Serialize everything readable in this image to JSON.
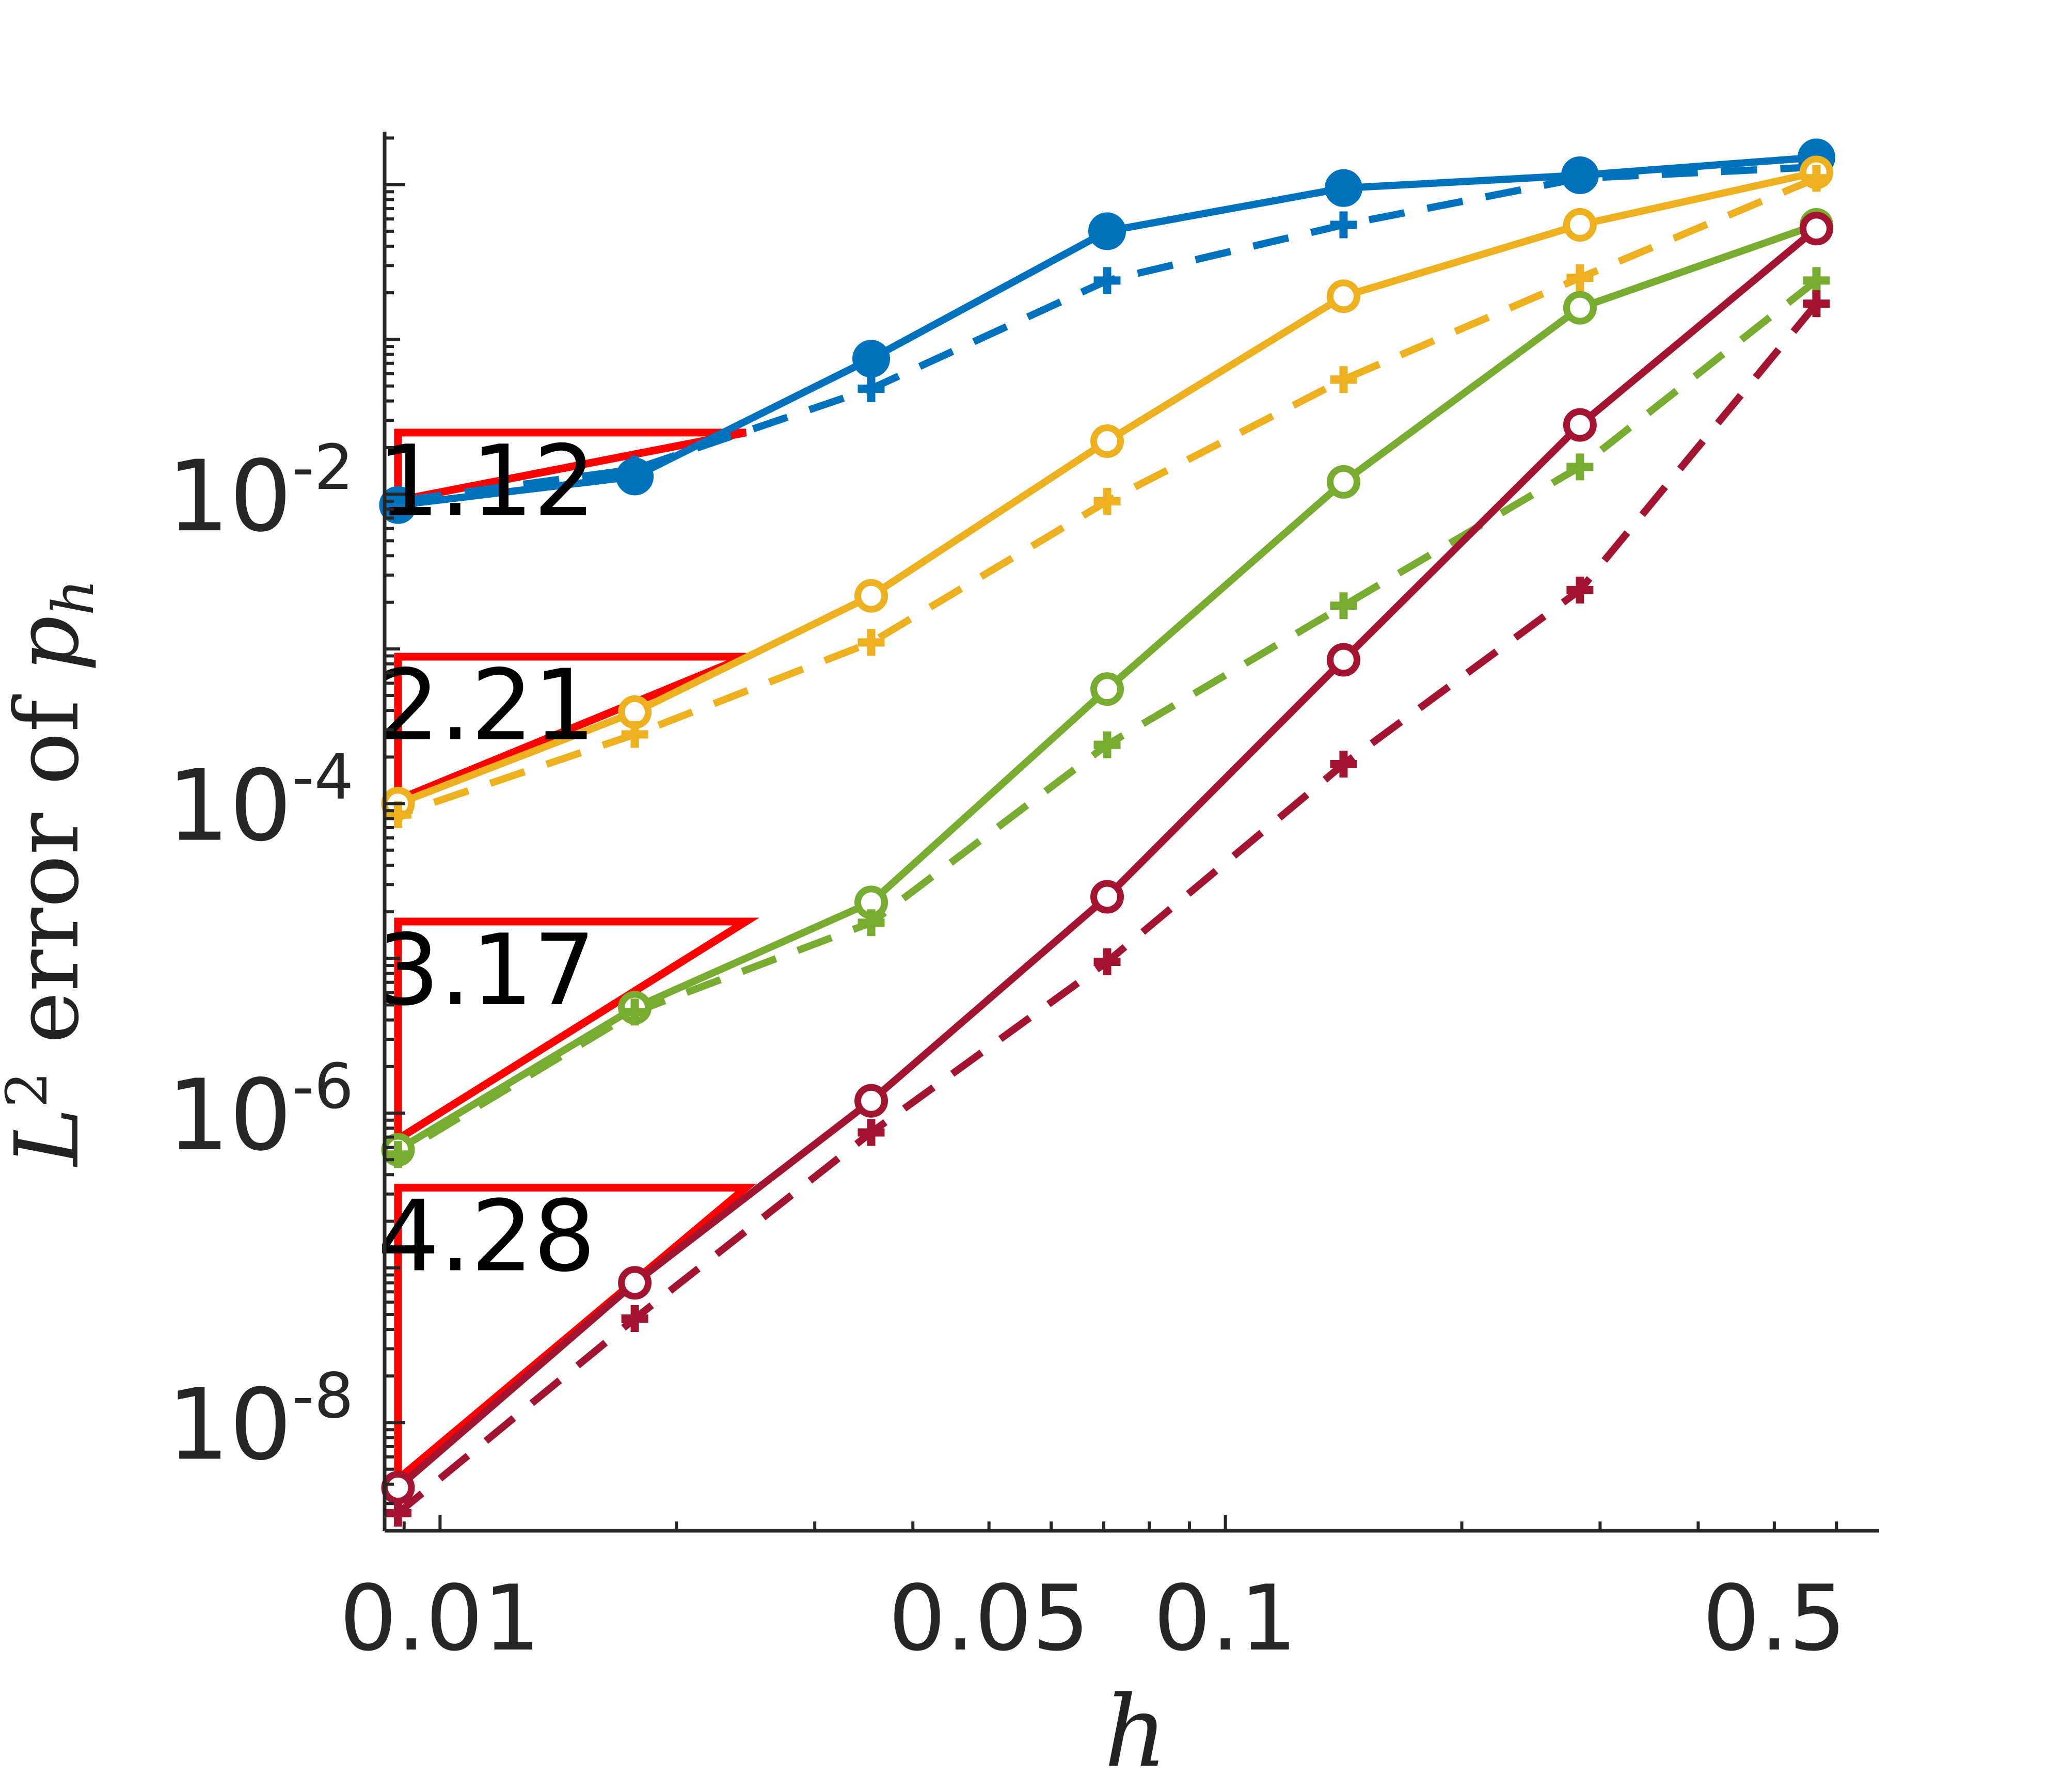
{
  "chart_data": {
    "type": "line",
    "xlabel": "h",
    "ylabel": {
      "main": "L",
      "sup": "2",
      "mid": " error of ",
      "var": "p",
      "sub": "h"
    },
    "xscale": "log",
    "yscale": "log",
    "xlim": [
      0.0085,
      0.68
    ],
    "ylim": [
      2e-09,
      2.2
    ],
    "x_ticks": [
      {
        "value": 0.01,
        "label": "0.01"
      },
      {
        "value": 0.05,
        "label": "0.05"
      },
      {
        "value": 0.1,
        "label": "0.1"
      },
      {
        "value": 0.5,
        "label": "0.5"
      }
    ],
    "y_ticks": [
      {
        "value": 0.01,
        "base": "10",
        "exp": "-2"
      },
      {
        "value": 0.0001,
        "base": "10",
        "exp": "-4"
      },
      {
        "value": 1e-06,
        "base": "10",
        "exp": "-6"
      },
      {
        "value": 1e-08,
        "base": "10",
        "exp": "-8"
      }
    ],
    "grid": false,
    "legend": "none",
    "x": [
      0.5657,
      0.2828,
      0.1414,
      0.0707,
      0.0354,
      0.0177,
      0.00884
    ],
    "series": [
      {
        "color": "#0072BD",
        "style": "solid",
        "marker": "circle-filled",
        "values": [
          1.5,
          1.15,
          0.95,
          0.5,
          0.075,
          0.013,
          0.0085
        ]
      },
      {
        "color": "#0072BD",
        "style": "dashed",
        "marker": "plus",
        "values": [
          1.3,
          1.1,
          0.55,
          0.24,
          0.048,
          0.0145,
          0.009
        ]
      },
      {
        "color": "#EDB120",
        "style": "solid",
        "marker": "circle",
        "values": [
          1.2,
          0.55,
          0.19,
          0.022,
          0.0022,
          0.00039,
          0.0001
        ]
      },
      {
        "color": "#EDB120",
        "style": "dashed",
        "marker": "plus",
        "values": [
          1.1,
          0.25,
          0.055,
          0.009,
          0.0011,
          0.00028,
          8.5e-05
        ]
      },
      {
        "color": "#77AC30",
        "style": "solid",
        "marker": "circle",
        "values": [
          0.55,
          0.16,
          0.012,
          0.00055,
          2.3e-05,
          4.8e-06,
          5.8e-07
        ]
      },
      {
        "color": "#77AC30",
        "style": "dashed",
        "marker": "plus",
        "values": [
          0.24,
          0.015,
          0.0019,
          0.00024,
          1.7e-05,
          4.5e-06,
          5.4e-07
        ]
      },
      {
        "color": "#A2142F",
        "style": "solid",
        "marker": "circle",
        "values": [
          0.52,
          0.028,
          0.00085,
          2.5e-05,
          1.2e-06,
          8e-08,
          3.8e-09
        ]
      },
      {
        "color": "#A2142F",
        "style": "dashed",
        "marker": "plus",
        "values": [
          0.17,
          0.0024,
          0.00018,
          9.5e-06,
          7.5e-07,
          4.7e-08,
          2.6e-09
        ]
      }
    ],
    "slope_triangles": [
      {
        "label": "1.12",
        "x0": 0.00884,
        "x1": 0.02452,
        "y_low": 0.0091,
        "y_high": 0.025
      },
      {
        "label": "2.21",
        "x0": 0.00884,
        "x1": 0.02452,
        "y_low": 0.000106,
        "y_high": 0.00089
      },
      {
        "label": "3.17",
        "x0": 0.00884,
        "x1": 0.02452,
        "y_low": 6.8e-07,
        "y_high": 1.73e-05
      },
      {
        "label": "4.28",
        "x0": 0.00884,
        "x1": 0.02452,
        "y_low": 4.3e-09,
        "y_high": 3.3e-07
      }
    ],
    "triangle_color": "#FF0000"
  }
}
